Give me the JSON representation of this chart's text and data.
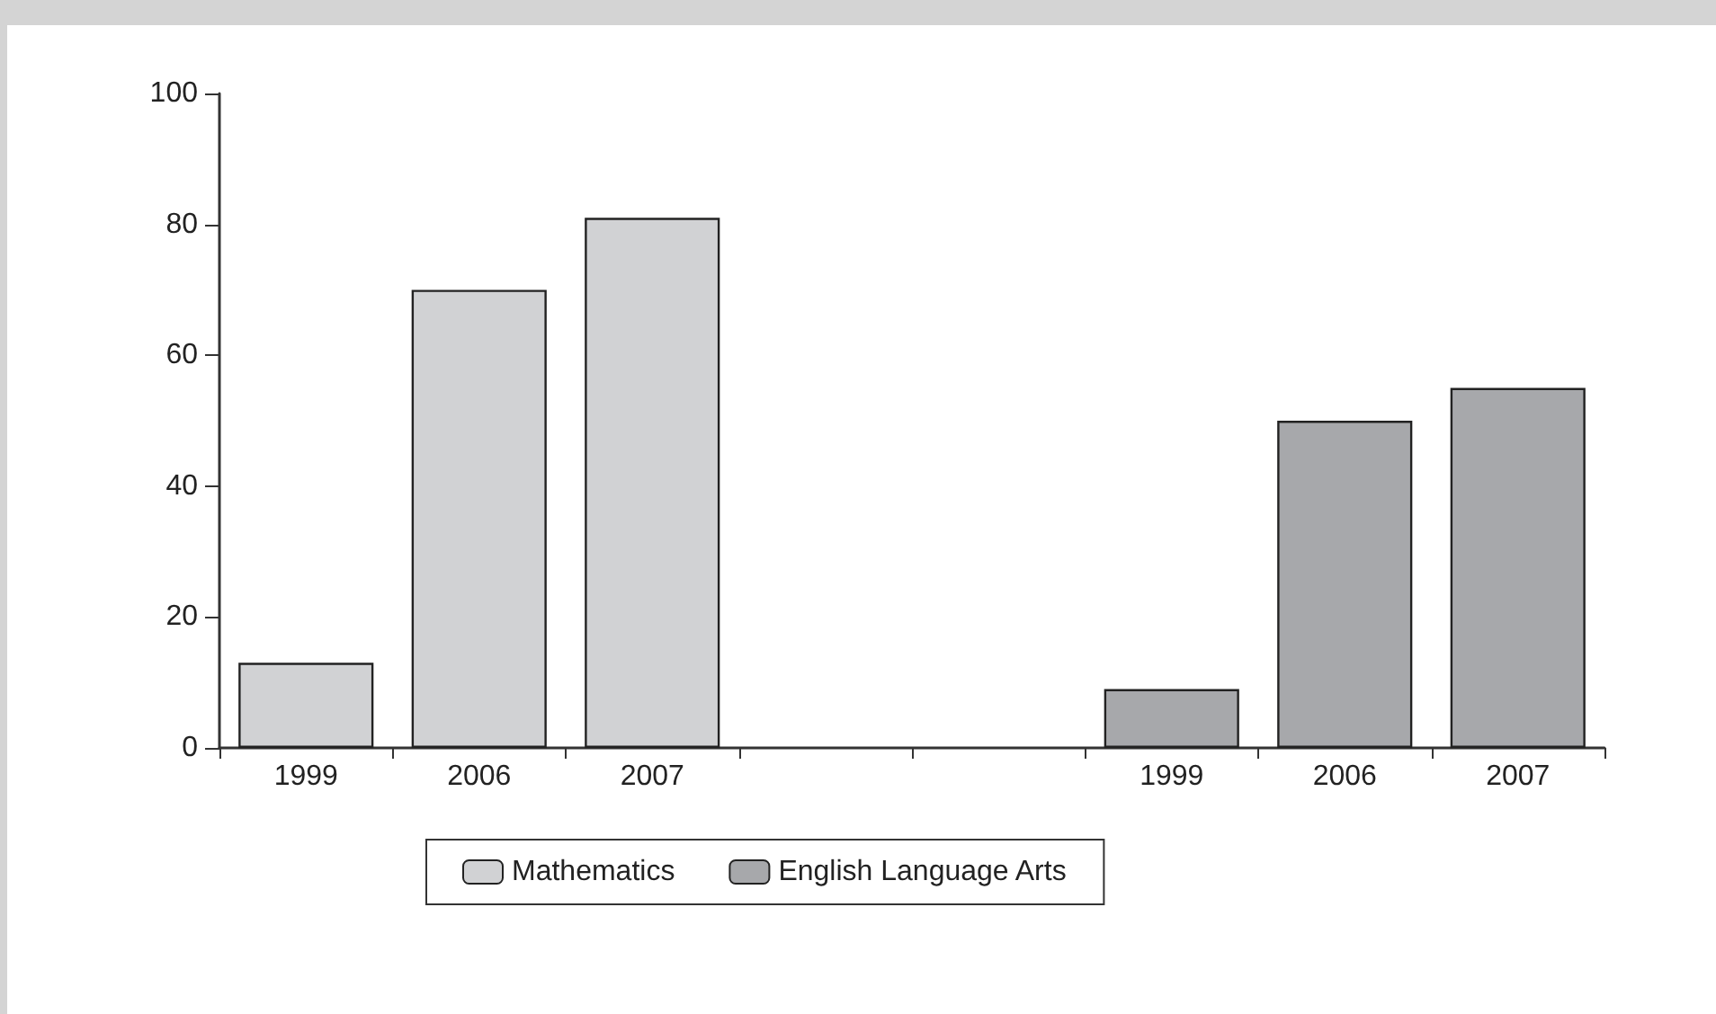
{
  "chart_data": {
    "type": "bar",
    "categories": [
      "1999",
      "2006",
      "2007",
      null,
      null,
      "1999",
      "2006",
      "2007"
    ],
    "series": [
      {
        "name": "Mathematics",
        "color": "#d1d2d4",
        "values": [
          13,
          70,
          81,
          null,
          null,
          null,
          null,
          null
        ]
      },
      {
        "name": "English Language Arts",
        "color": "#a7a8ab",
        "values": [
          null,
          null,
          null,
          null,
          null,
          9,
          50,
          55
        ]
      }
    ],
    "ylim": [
      0,
      100
    ],
    "yticks": [
      0,
      20,
      40,
      60,
      80,
      100
    ],
    "grid": false,
    "legend": "bottom"
  }
}
